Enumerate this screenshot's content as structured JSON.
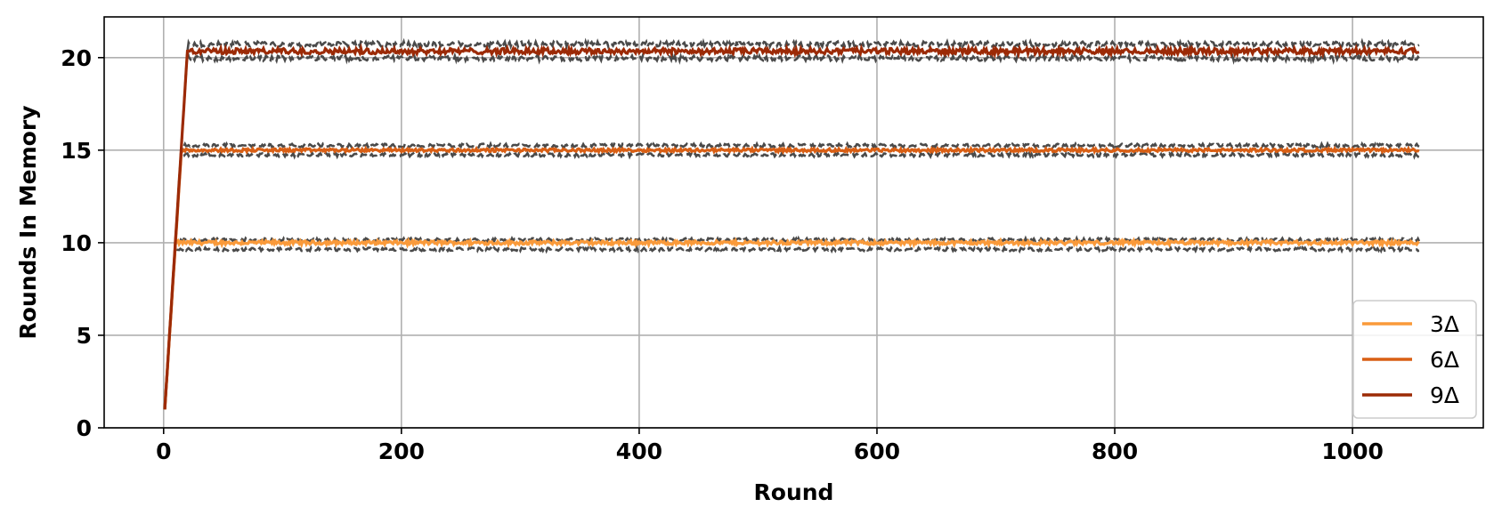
{
  "chart_data": {
    "type": "line",
    "title": "",
    "xlabel": "Round",
    "ylabel": "Rounds In Memory",
    "xlim": [
      -50,
      1110
    ],
    "ylim": [
      0,
      22.2
    ],
    "x_ticks": [
      0,
      200,
      400,
      600,
      800,
      1000
    ],
    "y_ticks": [
      0,
      5,
      10,
      15,
      20
    ],
    "grid": true,
    "legend_position": "bottom-right",
    "x_range": [
      1,
      1056
    ],
    "ramp_end_round": [
      10,
      15,
      20
    ],
    "series": [
      {
        "name": "3Δ",
        "color": "#fa9a3a",
        "start": 1,
        "plateau": 10,
        "mean_noise": 0.1,
        "band": [
          9.6,
          10.2
        ]
      },
      {
        "name": "6Δ",
        "color": "#d95f14",
        "start": 1,
        "plateau": 15,
        "mean_noise": 0.08,
        "band": [
          14.7,
          15.3
        ]
      },
      {
        "name": "9Δ",
        "color": "#9c2a06",
        "start": 1,
        "plateau": 20.35,
        "mean_noise": 0.15,
        "band": [
          19.9,
          20.8
        ]
      }
    ],
    "band_style": {
      "color": "#4a4a4a",
      "dash": "dashed"
    }
  }
}
